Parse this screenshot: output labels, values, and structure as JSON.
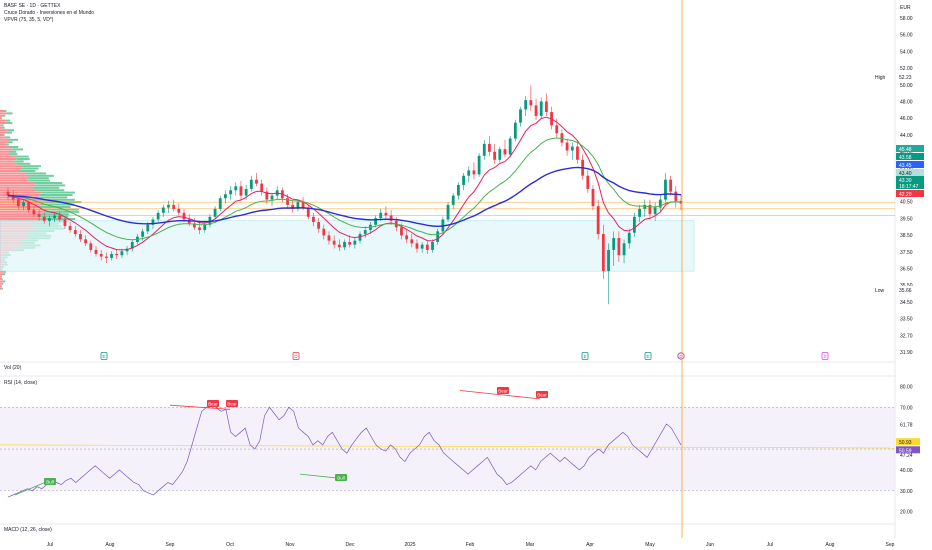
{
  "header": {
    "symbol_line": "BASF SE · 1D · GETTEX",
    "indicator_line": "Cruce Dorado - Inversiones en el Mundo",
    "vpvr_line": "VPVR (75, 35, 5, VD*)",
    "currency": "EUR"
  },
  "panes": {
    "vol_label": "Vol (20)",
    "rsi_label": "RSI (14, close)",
    "macd_label": "MACD (12, 26, close)"
  },
  "chart_data": [
    {
      "type": "candlestick",
      "name": "price",
      "x_ticks": [
        "Jul",
        "Aug",
        "Sep",
        "Oct",
        "Nov",
        "Dec",
        "2025",
        "Feb",
        "Mar",
        "Apr",
        "May",
        "Jun",
        "Jul",
        "Aug",
        "Sep"
      ],
      "y_ticks": [
        "58.00",
        "56.00",
        "54.00",
        "52.00",
        "50.00",
        "48.00",
        "46.00",
        "44.00",
        "43.00",
        "42.00",
        "41.50",
        "40.50",
        "39.50",
        "38.50",
        "37.50",
        "36.50",
        "35.50",
        "34.50",
        "33.50",
        "32.70",
        "31.90"
      ],
      "ylim": [
        31.5,
        58.5
      ],
      "price_labels": [
        {
          "text": "High",
          "value": "52.23",
          "color": "#ffffff",
          "text_color": "#131722"
        },
        {
          "text": "",
          "value": "45.48",
          "color": "#26a69a",
          "text_color": "#ffffff"
        },
        {
          "text": "",
          "value": "43.58",
          "color": "#089981",
          "text_color": "#ffffff"
        },
        {
          "text": "",
          "value": "43.45",
          "color": "#2962ff",
          "text_color": "#ffffff"
        },
        {
          "text": "",
          "value": "43.40",
          "color": "#b2dfdb",
          "text_color": "#131722"
        },
        {
          "text": "",
          "value": "43.30",
          "color": "#089981",
          "text_color": "#ffffff"
        },
        {
          "text": "",
          "value": "18:17:47",
          "color": "#089981",
          "text_color": "#ffffff"
        },
        {
          "text": "",
          "value": "42.20",
          "color": "#f23645",
          "text_color": "#ffffff"
        },
        {
          "text": "Low",
          "value": "35.66",
          "color": "#ffffff",
          "text_color": "#131722"
        }
      ],
      "ohlc": [
        [
          44.2,
          44.5,
          43.6,
          43.9
        ],
        [
          43.9,
          44.3,
          43.4,
          43.6
        ],
        [
          43.6,
          43.9,
          42.9,
          43.1
        ],
        [
          43.1,
          43.6,
          42.8,
          43.4
        ],
        [
          43.4,
          43.5,
          42.6,
          42.8
        ],
        [
          42.8,
          43.1,
          42.3,
          42.5
        ],
        [
          42.5,
          42.8,
          42.0,
          42.3
        ],
        [
          42.3,
          42.6,
          41.8,
          42.0
        ],
        [
          42.0,
          42.4,
          41.6,
          42.2
        ],
        [
          42.2,
          42.6,
          41.9,
          42.4
        ],
        [
          42.4,
          42.7,
          41.9,
          42.1
        ],
        [
          42.1,
          42.3,
          41.4,
          41.6
        ],
        [
          41.6,
          41.9,
          41.1,
          41.3
        ],
        [
          41.3,
          41.6,
          40.8,
          41.0
        ],
        [
          41.0,
          41.3,
          40.4,
          40.6
        ],
        [
          40.6,
          40.9,
          40.1,
          40.3
        ],
        [
          40.3,
          40.5,
          39.6,
          39.8
        ],
        [
          39.8,
          40.1,
          39.3,
          39.5
        ],
        [
          39.5,
          39.8,
          39.0,
          39.3
        ],
        [
          39.3,
          39.6,
          38.8,
          39.2
        ],
        [
          39.2,
          39.7,
          39.0,
          39.5
        ],
        [
          39.5,
          39.8,
          39.1,
          39.4
        ],
        [
          39.4,
          39.9,
          39.2,
          39.7
        ],
        [
          39.7,
          40.1,
          39.4,
          39.9
        ],
        [
          39.9,
          40.6,
          39.7,
          40.4
        ],
        [
          40.4,
          41.0,
          40.2,
          40.8
        ],
        [
          40.8,
          41.4,
          40.5,
          41.2
        ],
        [
          41.2,
          41.9,
          41.0,
          41.7
        ],
        [
          41.7,
          42.3,
          41.4,
          42.1
        ],
        [
          42.1,
          42.8,
          41.9,
          42.6
        ],
        [
          42.6,
          43.2,
          42.3,
          43.0
        ],
        [
          43.0,
          43.5,
          42.6,
          43.2
        ],
        [
          43.2,
          43.6,
          42.7,
          42.9
        ],
        [
          42.9,
          43.3,
          42.4,
          42.6
        ],
        [
          42.6,
          42.9,
          41.9,
          42.1
        ],
        [
          42.1,
          42.5,
          41.6,
          41.8
        ],
        [
          41.8,
          42.2,
          41.3,
          41.5
        ],
        [
          41.5,
          41.9,
          41.0,
          41.3
        ],
        [
          41.3,
          41.9,
          41.1,
          41.7
        ],
        [
          41.7,
          42.5,
          41.5,
          42.3
        ],
        [
          42.3,
          43.1,
          42.1,
          42.9
        ],
        [
          42.9,
          43.9,
          42.7,
          43.7
        ],
        [
          43.7,
          44.3,
          43.3,
          44.0
        ],
        [
          44.0,
          44.6,
          43.6,
          44.3
        ],
        [
          44.3,
          44.9,
          43.9,
          44.6
        ],
        [
          44.6,
          45.0,
          43.6,
          43.9
        ],
        [
          43.9,
          44.7,
          43.6,
          44.4
        ],
        [
          44.4,
          45.4,
          44.2,
          45.1
        ],
        [
          45.1,
          45.6,
          44.6,
          44.8
        ],
        [
          44.8,
          45.1,
          43.9,
          44.2
        ],
        [
          44.2,
          44.5,
          43.3,
          43.6
        ],
        [
          43.6,
          44.1,
          43.1,
          43.9
        ],
        [
          43.9,
          44.6,
          43.6,
          44.3
        ],
        [
          44.3,
          44.5,
          43.4,
          43.7
        ],
        [
          43.7,
          44.0,
          42.9,
          43.2
        ],
        [
          43.2,
          43.5,
          42.6,
          42.9
        ],
        [
          42.9,
          43.6,
          42.7,
          43.4
        ],
        [
          43.4,
          43.8,
          42.8,
          43.0
        ],
        [
          43.0,
          43.2,
          42.1,
          42.3
        ],
        [
          42.3,
          42.6,
          41.6,
          41.9
        ],
        [
          41.9,
          42.2,
          41.1,
          41.4
        ],
        [
          41.4,
          41.7,
          40.6,
          40.9
        ],
        [
          40.9,
          41.2,
          40.2,
          40.5
        ],
        [
          40.5,
          40.9,
          39.9,
          40.2
        ],
        [
          40.2,
          40.6,
          39.7,
          40.0
        ],
        [
          40.0,
          40.6,
          39.8,
          40.4
        ],
        [
          40.4,
          40.9,
          40.0,
          40.2
        ],
        [
          40.2,
          40.7,
          39.9,
          40.5
        ],
        [
          40.5,
          41.2,
          40.3,
          41.0
        ],
        [
          41.0,
          41.6,
          40.7,
          41.3
        ],
        [
          41.3,
          41.9,
          41.0,
          41.7
        ],
        [
          41.7,
          42.4,
          41.5,
          42.2
        ],
        [
          42.2,
          42.9,
          42.0,
          42.6
        ],
        [
          42.6,
          43.1,
          42.1,
          42.4
        ],
        [
          42.4,
          42.8,
          41.7,
          42.0
        ],
        [
          42.0,
          42.3,
          41.2,
          41.5
        ],
        [
          41.5,
          41.8,
          40.6,
          40.9
        ],
        [
          40.9,
          41.3,
          40.3,
          40.6
        ],
        [
          40.6,
          41.0,
          40.0,
          40.3
        ],
        [
          40.3,
          40.6,
          39.6,
          39.9
        ],
        [
          39.9,
          40.4,
          39.6,
          40.2
        ],
        [
          40.2,
          40.5,
          39.5,
          39.8
        ],
        [
          39.8,
          40.6,
          39.6,
          40.4
        ],
        [
          40.4,
          41.4,
          40.2,
          41.2
        ],
        [
          41.2,
          42.3,
          41.0,
          42.1
        ],
        [
          42.1,
          43.4,
          41.9,
          43.2
        ],
        [
          43.2,
          44.1,
          42.9,
          43.9
        ],
        [
          43.9,
          44.9,
          43.6,
          44.7
        ],
        [
          44.7,
          45.6,
          44.3,
          45.4
        ],
        [
          45.4,
          46.1,
          44.9,
          45.8
        ],
        [
          45.8,
          46.4,
          45.1,
          45.5
        ],
        [
          45.5,
          47.1,
          45.3,
          46.9
        ],
        [
          46.9,
          48.1,
          46.6,
          47.8
        ],
        [
          47.8,
          48.4,
          46.9,
          47.2
        ],
        [
          47.2,
          47.8,
          46.3,
          46.6
        ],
        [
          46.6,
          47.6,
          46.4,
          47.4
        ],
        [
          47.4,
          48.1,
          46.8,
          47.0
        ],
        [
          47.0,
          48.4,
          46.8,
          48.2
        ],
        [
          48.2,
          49.6,
          48.0,
          49.4
        ],
        [
          49.4,
          50.6,
          49.1,
          50.4
        ],
        [
          50.4,
          51.4,
          49.9,
          51.1
        ],
        [
          51.1,
          52.2,
          50.3,
          50.7
        ],
        [
          50.7,
          51.2,
          49.6,
          49.9
        ],
        [
          49.9,
          51.3,
          49.7,
          51.0
        ],
        [
          51.0,
          51.6,
          49.9,
          50.2
        ],
        [
          50.2,
          50.6,
          48.9,
          49.2
        ],
        [
          49.2,
          49.7,
          48.3,
          48.6
        ],
        [
          48.6,
          48.9,
          47.6,
          47.9
        ],
        [
          47.9,
          48.2,
          46.9,
          47.3
        ],
        [
          47.3,
          47.9,
          46.6,
          47.6
        ],
        [
          47.6,
          48.0,
          46.3,
          46.6
        ],
        [
          46.6,
          47.0,
          45.1,
          45.4
        ],
        [
          45.4,
          45.8,
          44.1,
          44.4
        ],
        [
          44.4,
          44.7,
          42.8,
          43.1
        ],
        [
          43.1,
          43.6,
          40.6,
          41.0
        ],
        [
          41.0,
          41.7,
          37.6,
          38.2
        ],
        [
          38.2,
          40.3,
          35.7,
          39.8
        ],
        [
          39.8,
          41.2,
          38.6,
          40.7
        ],
        [
          40.7,
          41.2,
          38.9,
          39.4
        ],
        [
          39.4,
          40.6,
          38.8,
          40.3
        ],
        [
          40.3,
          41.4,
          39.9,
          41.1
        ],
        [
          41.1,
          42.6,
          40.8,
          42.3
        ],
        [
          42.3,
          43.2,
          41.9,
          42.9
        ],
        [
          42.9,
          43.6,
          42.3,
          43.2
        ],
        [
          43.2,
          43.6,
          42.1,
          42.5
        ],
        [
          42.5,
          43.4,
          42.0,
          43.0
        ],
        [
          43.0,
          43.9,
          42.7,
          43.6
        ],
        [
          43.6,
          45.6,
          43.4,
          45.1
        ],
        [
          45.1,
          45.4,
          43.9,
          44.2
        ],
        [
          44.2,
          44.6,
          43.0,
          43.5
        ],
        [
          43.5,
          44.0,
          42.8,
          43.3
        ]
      ],
      "moving_averages": [
        {
          "name": "",
          "color": "#e91e63"
        },
        {
          "name": "",
          "color": "#4caf50"
        },
        {
          "name": "",
          "color": "#2a2ed8"
        }
      ],
      "zone_box": {
        "top": 42.0,
        "bottom": 38.2,
        "color": "#e0f7fa"
      },
      "grid": true
    },
    {
      "type": "line",
      "name": "rsi",
      "y_ticks": [
        "80.00",
        "70.00",
        "61.78",
        "50.00",
        "47.24",
        "40.00",
        "30.00",
        "20.00"
      ],
      "ylim": [
        17,
        84
      ],
      "band": [
        30,
        70
      ],
      "value_labels": [
        {
          "value": "50.93",
          "color": "#fdd835",
          "text_color": "#131722"
        },
        {
          "value": "50.59",
          "color": "#7e57c2",
          "text_color": "#ffffff"
        }
      ],
      "values": [
        27,
        28,
        29,
        30,
        31,
        30,
        32,
        31,
        33,
        35,
        34,
        33,
        35,
        36,
        34,
        36,
        38,
        40,
        42,
        40,
        38,
        36,
        38,
        40,
        38,
        36,
        34,
        33,
        30,
        29,
        28,
        30,
        32,
        34,
        33,
        36,
        39,
        44,
        52,
        60,
        68,
        70,
        71,
        70,
        68,
        69,
        58,
        56,
        58,
        60,
        52,
        50,
        54,
        66,
        70,
        67,
        64,
        66,
        70,
        68,
        60,
        58,
        56,
        52,
        54,
        52,
        56,
        58,
        54,
        50,
        48,
        52,
        55,
        58,
        60,
        56,
        52,
        50,
        49,
        52,
        50,
        46,
        44,
        48,
        50,
        52,
        56,
        58,
        54,
        52,
        48,
        46,
        44,
        42,
        40,
        38,
        40,
        42,
        44,
        46,
        42,
        38,
        36,
        33,
        34,
        36,
        38,
        40,
        42,
        40,
        44,
        46,
        48,
        46,
        44,
        46,
        44,
        42,
        40,
        42,
        46,
        48,
        50,
        48,
        52,
        54,
        56,
        58,
        56,
        52,
        50,
        48,
        46,
        50,
        54,
        58,
        62,
        60,
        56,
        52
      ],
      "annotations": [
        {
          "text": "Bear",
          "color": "#f23645"
        },
        {
          "text": "Bear",
          "color": "#f23645"
        },
        {
          "text": "Bear",
          "color": "#f23645"
        },
        {
          "text": "Bear",
          "color": "#f23645"
        },
        {
          "text": "Bull",
          "color": "#4caf50"
        },
        {
          "text": "Bull",
          "color": "#4caf50"
        }
      ]
    }
  ],
  "marker_flags": [
    {
      "glyph": "E",
      "color": "#089981"
    },
    {
      "glyph": "D",
      "color": "#f23645"
    },
    {
      "glyph": "E",
      "color": "#089981"
    },
    {
      "glyph": "E",
      "color": "#089981"
    },
    {
      "glyph": "D",
      "color": "#9c27b0"
    },
    {
      "glyph": "S",
      "color": "#e040fb"
    }
  ]
}
